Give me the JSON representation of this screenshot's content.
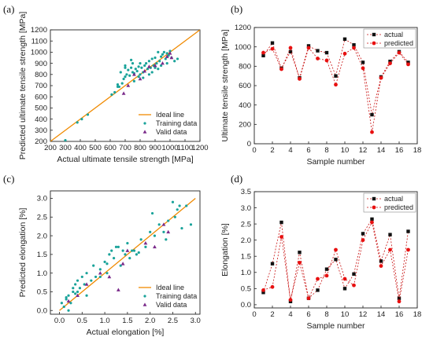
{
  "colors": {
    "ideal_line": "#f08a00",
    "training": "#1aa39a",
    "valid": "#7a2a8a",
    "actual": "#111111",
    "predicted": "#e81010",
    "connector": "#c81010"
  },
  "chart_data": [
    {
      "id": "a",
      "panel_label": "(a)",
      "type": "scatter",
      "xlabel": "Actual ultimate tensile strength [MPa]",
      "ylabel": "Predicted ultimate tensile strength [MPa]",
      "xlim": [
        200,
        1200
      ],
      "ylim": [
        200,
        1200
      ],
      "xticks": [
        200,
        300,
        400,
        500,
        600,
        700,
        800,
        900,
        1000,
        1100,
        1200
      ],
      "yticks": [
        200,
        300,
        400,
        500,
        600,
        700,
        800,
        900,
        1000,
        1100,
        1200
      ],
      "legend_position": "bottom-right",
      "series": [
        {
          "name": "Ideal line",
          "kind": "line",
          "x": [
            200,
            1200
          ],
          "y": [
            200,
            1200
          ]
        },
        {
          "name": "Training data",
          "kind": "scatter",
          "marker": "circle",
          "x": [
            300,
            380,
            410,
            450,
            610,
            630,
            650,
            660,
            670,
            680,
            690,
            700,
            700,
            710,
            720,
            730,
            740,
            750,
            750,
            760,
            770,
            780,
            790,
            800,
            800,
            810,
            820,
            830,
            840,
            850,
            860,
            870,
            880,
            890,
            900,
            910,
            920,
            930,
            940,
            950,
            960,
            970,
            980,
            990,
            1000,
            1010,
            1030,
            1050,
            760,
            820,
            860,
            900,
            940,
            980,
            700,
            740,
            880,
            920,
            650,
            790
          ],
          "y": [
            210,
            370,
            400,
            440,
            620,
            640,
            710,
            690,
            820,
            720,
            760,
            780,
            880,
            800,
            840,
            790,
            860,
            820,
            900,
            810,
            850,
            830,
            870,
            800,
            900,
            860,
            820,
            880,
            900,
            850,
            920,
            860,
            940,
            880,
            950,
            900,
            1000,
            920,
            960,
            980,
            1000,
            940,
            990,
            970,
            1010,
            950,
            920,
            940,
            740,
            770,
            800,
            860,
            880,
            900,
            860,
            930,
            820,
            850,
            690,
            780
          ]
        },
        {
          "name": "Valid data",
          "kind": "scatter",
          "marker": "triangle",
          "x": [
            690,
            720,
            760,
            800,
            830,
            860,
            900,
            950,
            980,
            1000,
            1010
          ],
          "y": [
            630,
            700,
            800,
            760,
            830,
            870,
            880,
            900,
            960,
            990,
            950
          ]
        }
      ]
    },
    {
      "id": "b",
      "panel_label": "(b)",
      "type": "line",
      "xlabel": "Sample number",
      "ylabel": "Ultimate tensile strength [MPa]",
      "xlim": [
        0,
        18
      ],
      "ylim": [
        0,
        1200
      ],
      "xticks": [
        0,
        2,
        4,
        6,
        8,
        10,
        12,
        14,
        16,
        18
      ],
      "yticks": [
        0,
        200,
        400,
        600,
        800,
        1000,
        1200
      ],
      "legend_position": "top-right",
      "x": [
        1,
        2,
        3,
        4,
        5,
        6,
        7,
        8,
        9,
        10,
        11,
        12,
        13,
        14,
        15,
        16,
        17
      ],
      "series": [
        {
          "name": "actual",
          "marker": "square",
          "values": [
            910,
            1040,
            780,
            950,
            680,
            1010,
            960,
            940,
            700,
            1080,
            1020,
            840,
            300,
            690,
            850,
            950,
            840
          ]
        },
        {
          "name": "predicted",
          "marker": "circle",
          "values": [
            940,
            980,
            770,
            990,
            670,
            990,
            880,
            860,
            610,
            930,
            990,
            780,
            120,
            680,
            830,
            940,
            820
          ]
        }
      ]
    },
    {
      "id": "c",
      "panel_label": "(c)",
      "type": "scatter",
      "xlabel": "Actual elongation [%]",
      "ylabel": "Predicted elongation [%]",
      "xlim": [
        -0.2,
        3.1
      ],
      "ylim": [
        -0.1,
        3.2
      ],
      "xticks": [
        0.0,
        0.5,
        1.0,
        1.5,
        2.0,
        2.5,
        3.0
      ],
      "yticks": [
        0.0,
        0.5,
        1.0,
        1.5,
        2.0,
        2.5,
        3.0
      ],
      "legend_position": "bottom-right",
      "series": [
        {
          "name": "Ideal line",
          "kind": "line",
          "x": [
            0,
            3
          ],
          "y": [
            0,
            3
          ]
        },
        {
          "name": "Training data",
          "kind": "scatter",
          "marker": "circle",
          "x": [
            0.05,
            0.1,
            0.15,
            0.2,
            0.25,
            0.3,
            0.3,
            0.35,
            0.4,
            0.45,
            0.5,
            0.55,
            0.6,
            0.7,
            0.75,
            0.8,
            0.9,
            1.0,
            1.05,
            1.1,
            1.15,
            1.2,
            1.3,
            1.35,
            1.4,
            1.5,
            1.55,
            1.6,
            1.7,
            1.8,
            1.9,
            2.0,
            2.1,
            2.2,
            2.3,
            2.4,
            2.5,
            2.55,
            2.6,
            2.7,
            2.8,
            2.9,
            0.2,
            0.4,
            0.6,
            0.9,
            1.25,
            1.45,
            1.65,
            2.05,
            2.35,
            2.65,
            0.15,
            0.35,
            1.05,
            1.75
          ],
          "y": [
            0.2,
            0.1,
            0.3,
            0.4,
            0.2,
            0.6,
            0.5,
            0.7,
            0.8,
            0.6,
            0.9,
            0.7,
            1.0,
            0.8,
            1.2,
            0.9,
            1.1,
            1.3,
            1.0,
            1.5,
            1.6,
            1.4,
            1.7,
            1.2,
            1.6,
            1.8,
            1.4,
            1.6,
            1.5,
            1.9,
            1.7,
            2.1,
            2.0,
            2.3,
            2.1,
            2.4,
            2.9,
            2.5,
            2.7,
            2.2,
            2.8,
            2.3,
            0.0,
            0.5,
            0.4,
            0.9,
            1.7,
            1.5,
            1.6,
            2.6,
            1.9,
            2.8,
            0.35,
            0.45,
            1.25,
            1.55
          ]
        },
        {
          "name": "Valid data",
          "kind": "scatter",
          "marker": "triangle",
          "x": [
            0.2,
            0.4,
            0.6,
            0.9,
            1.1,
            1.3,
            1.4,
            1.5,
            1.9,
            2.1,
            2.3,
            2.4
          ],
          "y": [
            0.25,
            0.4,
            0.7,
            1.0,
            0.9,
            0.55,
            1.25,
            1.6,
            1.8,
            1.7,
            2.3,
            2.1
          ]
        }
      ]
    },
    {
      "id": "d",
      "panel_label": "(d)",
      "type": "line",
      "xlabel": "Sample number",
      "ylabel": "Elongation [%]",
      "xlim": [
        0,
        18
      ],
      "ylim": [
        -0.1,
        3.5
      ],
      "xticks": [
        0,
        2,
        4,
        6,
        8,
        10,
        12,
        14,
        16,
        18
      ],
      "yticks": [
        0.0,
        0.5,
        1.0,
        1.5,
        2.0,
        2.5,
        3.0,
        3.5
      ],
      "legend_position": "top-right",
      "x": [
        1,
        2,
        3,
        4,
        5,
        6,
        7,
        8,
        9,
        10,
        11,
        12,
        13,
        14,
        15,
        16,
        17
      ],
      "series": [
        {
          "name": "actual",
          "marker": "square",
          "values": [
            0.38,
            1.27,
            2.55,
            0.1,
            1.62,
            0.2,
            0.45,
            1.1,
            1.4,
            0.5,
            0.95,
            2.2,
            2.65,
            1.35,
            2.17,
            0.2,
            2.27
          ]
        },
        {
          "name": "predicted",
          "marker": "circle",
          "values": [
            0.45,
            0.55,
            2.1,
            0.15,
            1.3,
            0.2,
            0.8,
            0.9,
            1.7,
            0.8,
            0.6,
            2.0,
            2.55,
            1.2,
            1.7,
            0.1,
            1.7
          ]
        }
      ]
    }
  ]
}
